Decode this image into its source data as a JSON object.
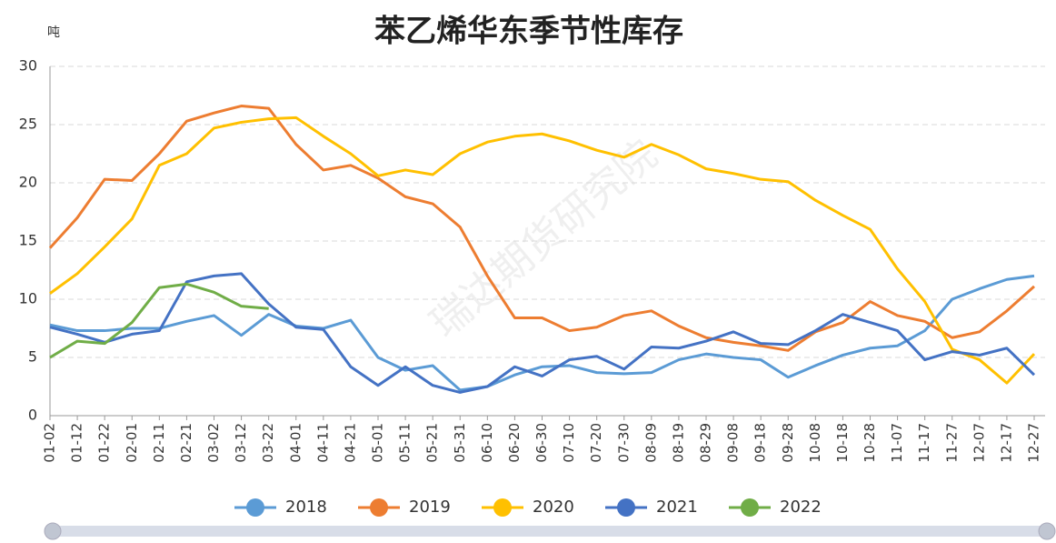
{
  "chart_data": {
    "type": "line",
    "title": "苯乙烯华东季节性库存",
    "y_label": "吨",
    "watermark": "瑞达期货研究院",
    "categories": [
      "01-02",
      "01-12",
      "01-22",
      "02-01",
      "02-11",
      "02-21",
      "03-02",
      "03-12",
      "03-22",
      "04-01",
      "04-11",
      "04-21",
      "05-01",
      "05-11",
      "05-21",
      "05-31",
      "06-10",
      "06-20",
      "06-30",
      "07-10",
      "07-20",
      "07-30",
      "08-09",
      "08-19",
      "08-29",
      "09-08",
      "09-18",
      "09-28",
      "10-08",
      "10-18",
      "10-28",
      "11-07",
      "11-17",
      "11-27",
      "12-07",
      "12-17",
      "12-27"
    ],
    "series": [
      {
        "name": "2018",
        "color": "#5b9bd5",
        "values": [
          7.8,
          7.3,
          7.3,
          7.5,
          7.5,
          8.1,
          8.6,
          6.9,
          8.7,
          7.7,
          7.5,
          8.2,
          5.0,
          3.9,
          4.3,
          2.2,
          2.5,
          3.5,
          4.2,
          4.3,
          3.7,
          3.6,
          3.7,
          4.8,
          5.3,
          5.0,
          4.8,
          3.3,
          4.3,
          5.2,
          5.8,
          6.0,
          7.3,
          10.0,
          10.9,
          11.7,
          12.0
        ]
      },
      {
        "name": "2019",
        "color": "#ed7d31",
        "values": [
          14.4,
          17.0,
          20.3,
          20.2,
          22.5,
          25.3,
          26.0,
          26.6,
          26.4,
          23.3,
          21.1,
          21.5,
          20.4,
          18.8,
          18.2,
          16.2,
          12.0,
          8.4,
          8.4,
          7.3,
          7.6,
          8.6,
          9.0,
          7.7,
          6.7,
          6.3,
          6.0,
          5.6,
          7.2,
          8.0,
          9.8,
          8.6,
          8.1,
          6.7,
          7.2,
          9.0,
          11.1
        ]
      },
      {
        "name": "2020",
        "color": "#ffc000",
        "values": [
          10.5,
          12.2,
          14.5,
          16.9,
          21.5,
          22.5,
          24.7,
          25.2,
          25.5,
          25.6,
          24.0,
          22.5,
          20.6,
          21.1,
          20.7,
          22.5,
          23.5,
          24.0,
          24.2,
          23.6,
          22.8,
          22.2,
          23.3,
          22.4,
          21.2,
          20.8,
          20.3,
          20.1,
          18.5,
          17.2,
          16.0,
          12.6,
          9.8,
          5.7,
          4.8,
          2.8,
          5.3
        ]
      },
      {
        "name": "2021",
        "color": "#4472c4",
        "values": [
          7.6,
          7.0,
          6.3,
          7.0,
          7.3,
          11.5,
          12.0,
          12.2,
          9.6,
          7.6,
          7.4,
          4.2,
          2.6,
          4.2,
          2.6,
          2.0,
          2.5,
          4.2,
          3.4,
          4.8,
          5.1,
          4.0,
          5.9,
          5.8,
          6.4,
          7.2,
          6.2,
          6.1,
          7.3,
          8.7,
          8.0,
          7.3,
          4.8,
          5.5,
          5.2,
          5.8,
          3.5
        ]
      },
      {
        "name": "2022",
        "color": "#70ad47",
        "values": [
          5.0,
          6.4,
          6.2,
          8.0,
          11.0,
          11.3,
          10.6,
          9.4,
          9.2,
          null,
          null,
          null,
          null,
          null,
          null,
          null,
          null,
          null,
          null,
          null,
          null,
          null,
          null,
          null,
          null,
          null,
          null,
          null,
          null,
          null,
          null,
          null,
          null,
          null,
          null,
          null,
          null
        ]
      }
    ],
    "ylim": [
      0,
      30
    ],
    "yticks": [
      0,
      5,
      10,
      15,
      20,
      25,
      30
    ],
    "grid": true,
    "legend": "bottom"
  }
}
